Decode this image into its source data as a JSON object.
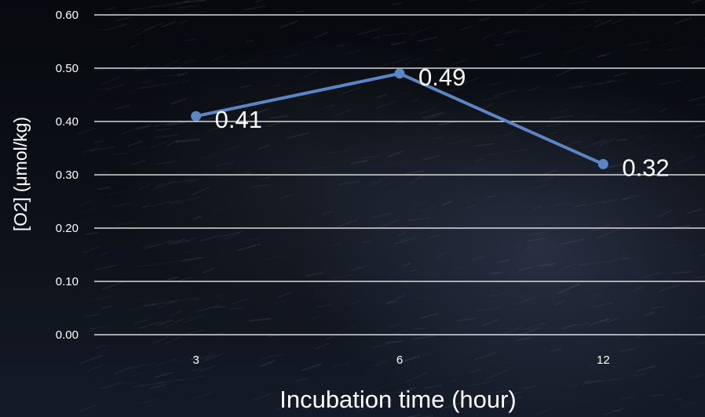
{
  "chart_data": {
    "type": "line",
    "categories": [
      "3",
      "6",
      "12"
    ],
    "series": [
      {
        "values": [
          0.41,
          0.49,
          0.32
        ],
        "data_labels": [
          "0.41",
          "0.49",
          "0.32"
        ]
      }
    ],
    "ylim": [
      0,
      0.6
    ],
    "y_ticks": [
      "0.00",
      "0.10",
      "0.20",
      "0.30",
      "0.40",
      "0.50",
      "0.60"
    ],
    "xlabel": "Incubation time (hour)",
    "ylabel": "[O2] (μmol/kg)",
    "grid": true,
    "legend": "none",
    "colors": {
      "series": "#5b86c5",
      "grid": "#ffffff",
      "text": "#ffffff"
    }
  }
}
